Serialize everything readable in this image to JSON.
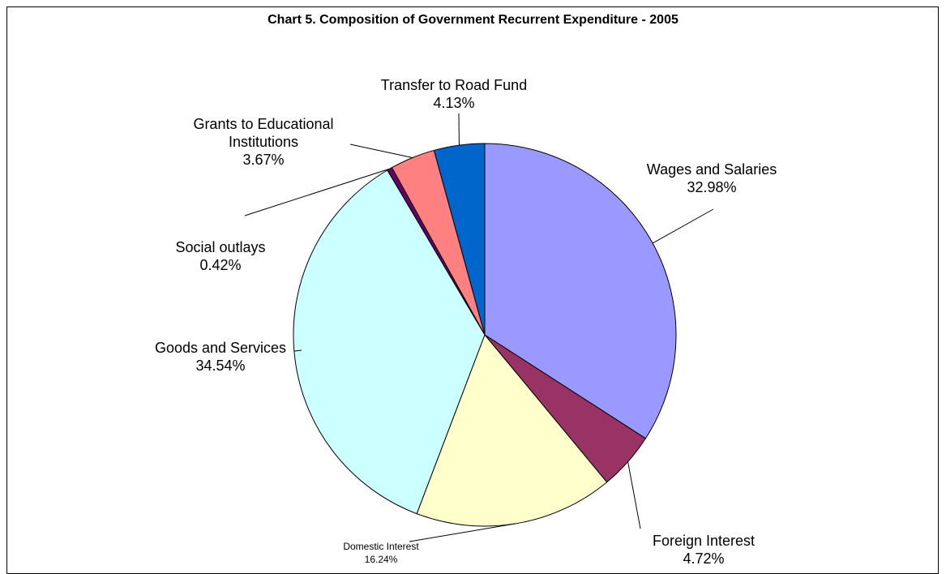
{
  "chart_data": {
    "type": "pie",
    "title": "Chart 5. Composition of Government Recurrent Expenditure - 2005",
    "categories": [
      "Wages and Salaries",
      "Foreign Interest",
      "Domestic Interest",
      "Goods and Services",
      "Social outlays",
      "Grants to Educational Institutions",
      "Transfer to Road Fund"
    ],
    "values": [
      32.98,
      4.72,
      16.24,
      34.54,
      0.42,
      3.67,
      4.13
    ],
    "value_labels": [
      "32.98%",
      "4.72%",
      "16.24%",
      "34.54%",
      "0.42%",
      "3.67%",
      "4.13%"
    ],
    "colors": [
      "#9999ff",
      "#993366",
      "#ffffcc",
      "#ccffff",
      "#660066",
      "#ff8080",
      "#0066cc"
    ]
  }
}
